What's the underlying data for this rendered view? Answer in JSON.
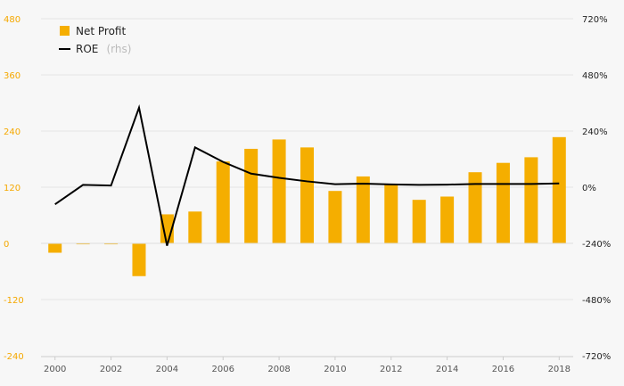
{
  "chart_data": {
    "type": "bar",
    "categories": [
      "2000",
      "2001",
      "2002",
      "2003",
      "2004",
      "2005",
      "2006",
      "2007",
      "2008",
      "2009",
      "2010",
      "2011",
      "2012",
      "2013",
      "2014",
      "2015",
      "2016",
      "2017",
      "2018"
    ],
    "x_tick_labels": [
      "2000",
      "2002",
      "2004",
      "2006",
      "2008",
      "2010",
      "2012",
      "2014",
      "2016",
      "2018"
    ],
    "series": [
      {
        "name": "Net Profit",
        "type": "bar",
        "axis": "left",
        "values": [
          -20,
          -2,
          -2,
          -70,
          62,
          68,
          175,
          202,
          222,
          205,
          112,
          143,
          127,
          93,
          100,
          152,
          172,
          184,
          227
        ]
      },
      {
        "name": "ROE",
        "type": "line",
        "axis": "right",
        "values": [
          -73,
          10,
          7,
          340,
          -250,
          170,
          108,
          58,
          40,
          25,
          13,
          15,
          12,
          10,
          11,
          14,
          14,
          14,
          16
        ]
      }
    ],
    "legend": [
      {
        "label": "Net Profit",
        "suffix": ""
      },
      {
        "label": "ROE",
        "suffix": "(rhs)"
      }
    ],
    "y_left": {
      "min": -240,
      "max": 480,
      "ticks": [
        -240,
        -120,
        0,
        120,
        240,
        360,
        480
      ],
      "tick_labels": [
        "-240",
        "-120",
        "0",
        "120",
        "240",
        "360",
        "480"
      ]
    },
    "y_right": {
      "min": -720,
      "max": 720,
      "ticks": [
        -720,
        -480,
        -240,
        0,
        240,
        480,
        720
      ],
      "tick_labels": [
        "-720%",
        "-480%",
        "-240%",
        "0%",
        "240%",
        "480%",
        "720%"
      ]
    },
    "colors": {
      "bar": "#f5ae00",
      "line": "#000000",
      "left_axis_text": "#f5a800",
      "grid": "#e6e6e6"
    },
    "grid": true,
    "legend_position": "top-left"
  }
}
